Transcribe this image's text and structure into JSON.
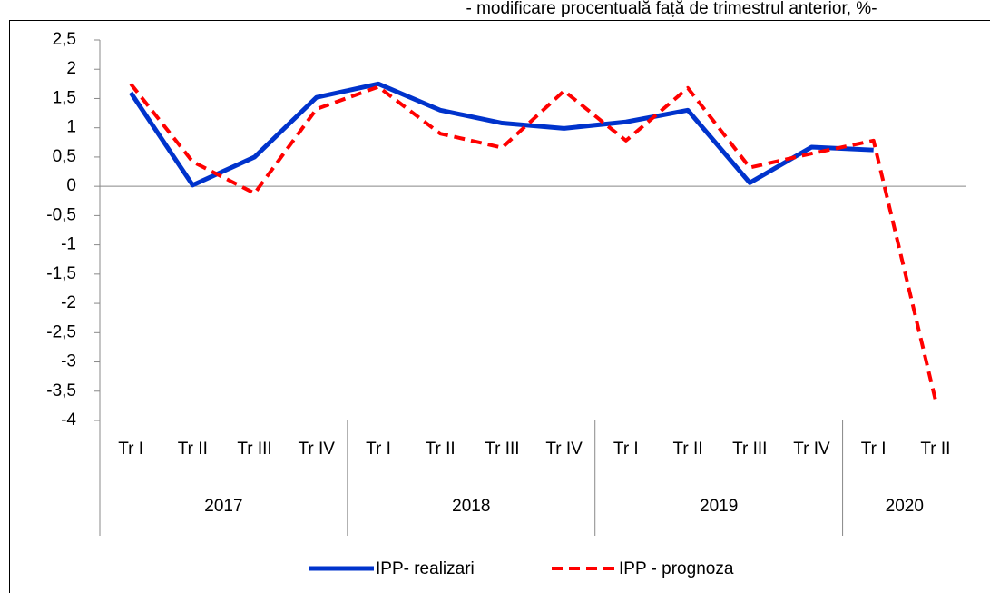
{
  "chart_data": {
    "type": "line",
    "subtitle": "- modificare procentuală față de trimestrul anterior, %-",
    "categories": [
      "Tr I",
      "Tr II",
      "Tr III",
      "Tr IV",
      "Tr I",
      "Tr II",
      "Tr III",
      "Tr IV",
      "Tr I",
      "Tr II",
      "Tr III",
      "Tr IV",
      "Tr I",
      "Tr II"
    ],
    "groups": [
      {
        "label": "2017",
        "count": 4
      },
      {
        "label": "2018",
        "count": 4
      },
      {
        "label": "2019",
        "count": 4
      },
      {
        "label": "2020",
        "count": 2
      }
    ],
    "series": [
      {
        "name": "IPP- realizari",
        "color": "#0033cc",
        "dash": false,
        "values": [
          1.6,
          0.02,
          0.5,
          1.52,
          1.75,
          1.3,
          1.08,
          0.99,
          1.1,
          1.3,
          0.06,
          0.67,
          0.62,
          null
        ]
      },
      {
        "name": "IPP - prognoza",
        "color": "#ff0000",
        "dash": true,
        "values": [
          1.75,
          0.42,
          -0.12,
          1.32,
          1.7,
          0.9,
          0.66,
          1.63,
          0.78,
          1.68,
          0.32,
          0.56,
          0.78,
          -3.65
        ]
      }
    ],
    "ylim": [
      -4,
      2.5
    ],
    "yticks": [
      {
        "value": 2.5,
        "label": "2,5"
      },
      2,
      {
        "value": 1.5,
        "label": "1,5"
      },
      1,
      {
        "value": 0.5,
        "label": "0,5"
      },
      0,
      {
        "value": -0.5,
        "label": "-0,5"
      },
      -1,
      {
        "value": -1.5,
        "label": "-1,5"
      },
      -2,
      {
        "value": -2.5,
        "label": "-2,5"
      },
      -3,
      {
        "value": -3.5,
        "label": "-3,5"
      },
      -4
    ],
    "legend": "bottom"
  }
}
